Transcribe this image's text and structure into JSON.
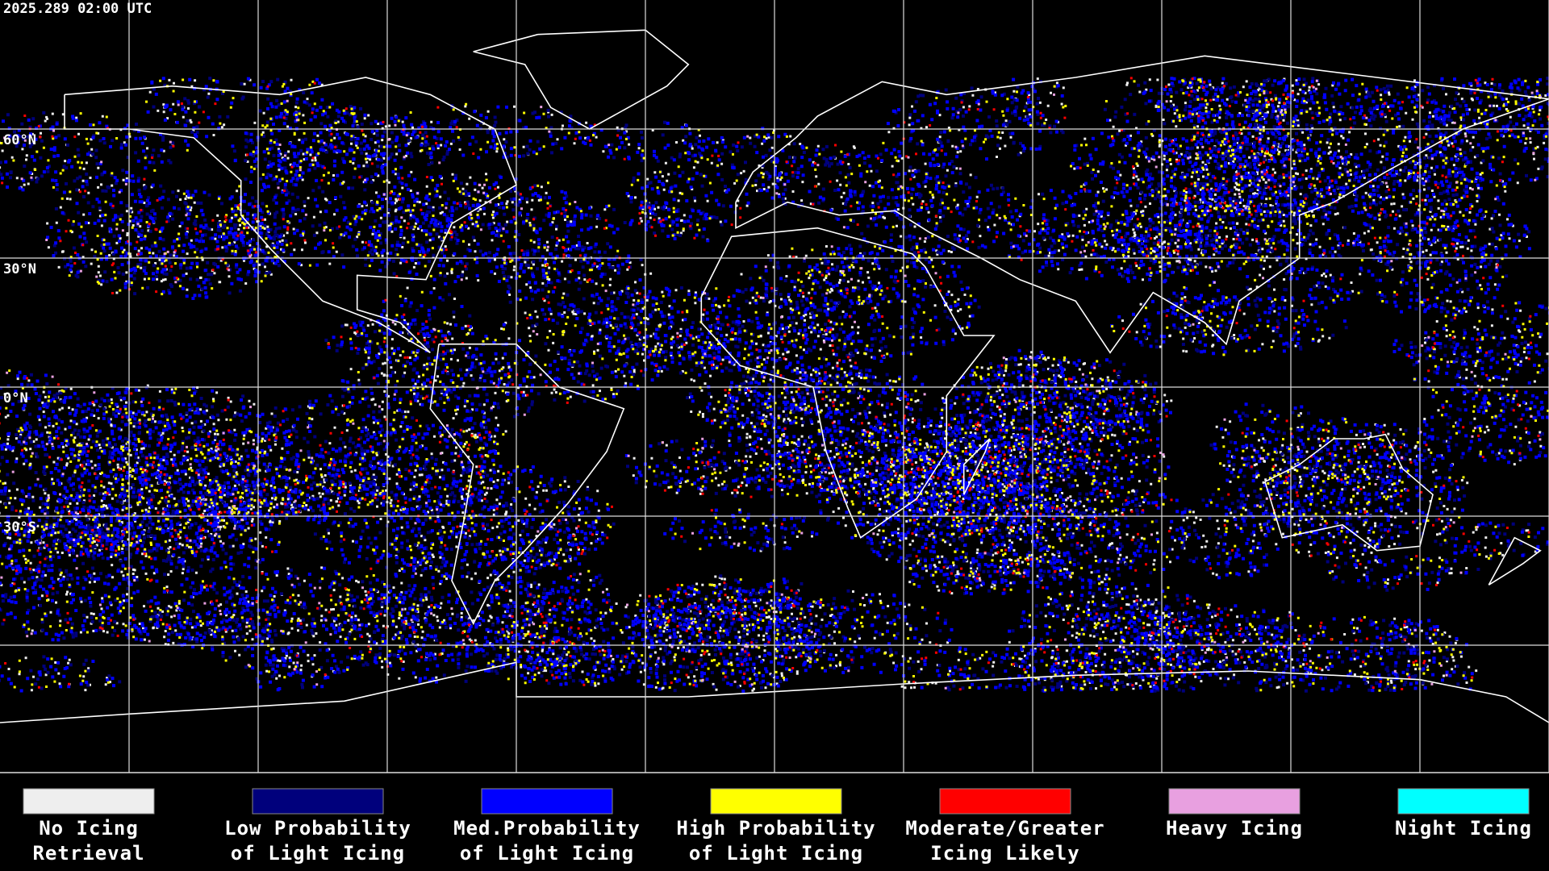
{
  "timestamp": "2025.289 02:00 UTC",
  "latitude_labels": [
    "60°N",
    "30°N",
    "0°N",
    "30°S"
  ],
  "legend": [
    {
      "lines": [
        "No Icing",
        "Retrieval"
      ],
      "color": "#eeeeee"
    },
    {
      "lines": [
        "Low Probability",
        "of Light Icing"
      ],
      "color": "#00007c"
    },
    {
      "lines": [
        "Med.Probability",
        "of Light Icing"
      ],
      "color": "#0000ff"
    },
    {
      "lines": [
        "High Probability",
        "of Light Icing"
      ],
      "color": "#ffff00"
    },
    {
      "lines": [
        "Moderate/Greater",
        "Icing Likely"
      ],
      "color": "#ff0000"
    },
    {
      "lines": [
        "Heavy Icing"
      ],
      "color": "#e8a0e0"
    },
    {
      "lines": [
        "Night Icing"
      ],
      "color": "#00ffff"
    }
  ]
}
